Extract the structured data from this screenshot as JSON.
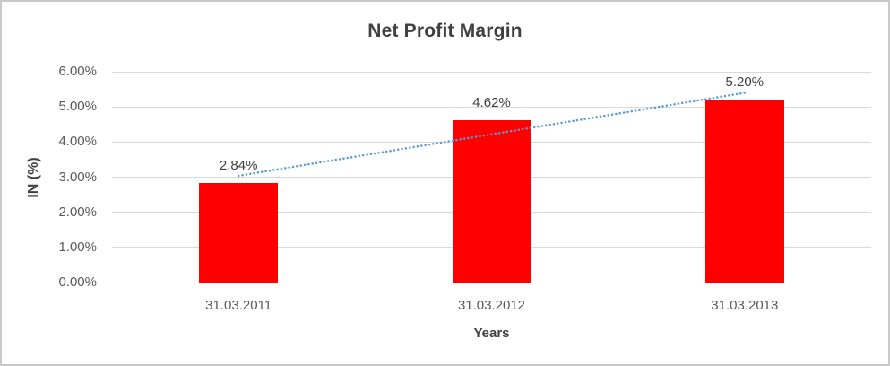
{
  "chart_data": {
    "type": "bar",
    "title": "Net Profit Margin",
    "xlabel": "Years",
    "ylabel": "IN (%)",
    "categories": [
      "31.03.2011",
      "31.03.2012",
      "31.03.2013"
    ],
    "values": [
      2.84,
      4.62,
      5.2
    ],
    "data_labels": [
      "2.84%",
      "4.62%",
      "5.20%"
    ],
    "ylim": [
      0,
      6
    ],
    "ytick_step": 1,
    "ytick_labels": [
      "0.00%",
      "1.00%",
      "2.00%",
      "3.00%",
      "4.00%",
      "5.00%",
      "6.00%"
    ],
    "grid": true,
    "legend": "none",
    "trendline": {
      "type": "linear",
      "style": "dotted"
    },
    "colors": {
      "bar": "#ff0000",
      "trendline": "#5b9bd5",
      "gridline": "#d9d9d9",
      "title_text": "#404040",
      "tick_text": "#595959"
    }
  }
}
